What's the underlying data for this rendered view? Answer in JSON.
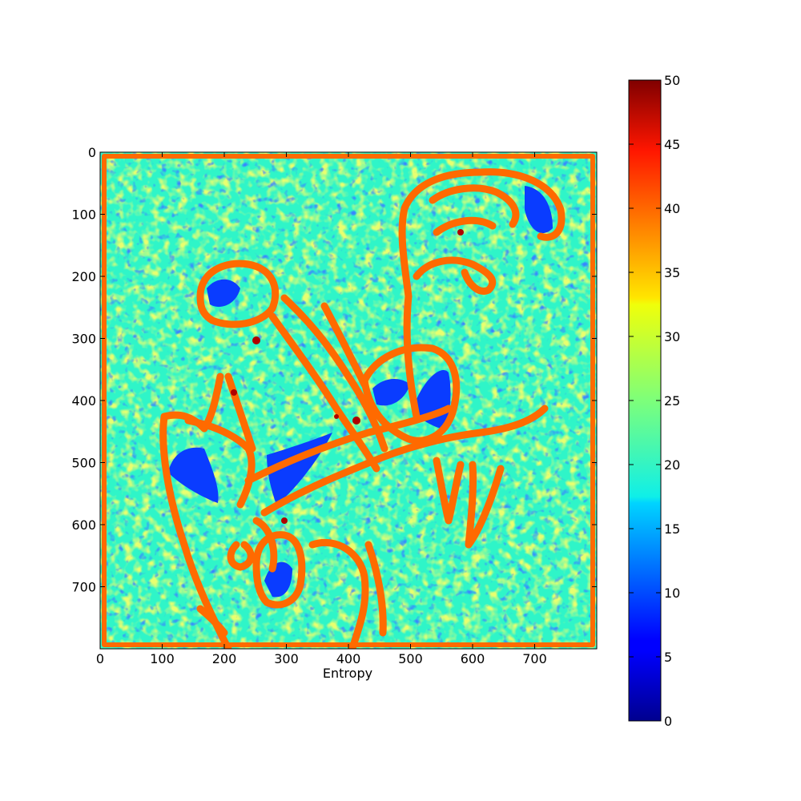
{
  "chart_data": {
    "type": "heatmap",
    "title": "",
    "xlabel": "Entropy",
    "ylabel": "",
    "xlim": [
      0,
      800
    ],
    "ylim": [
      800,
      0
    ],
    "x_ticks": [
      "0",
      "100",
      "200",
      "300",
      "400",
      "500",
      "600",
      "700"
    ],
    "y_ticks": [
      "0",
      "100",
      "200",
      "300",
      "400",
      "500",
      "600",
      "700"
    ],
    "colormap": "jet",
    "colorbar": {
      "range": [
        0,
        50
      ],
      "ticks": [
        "0",
        "5",
        "10",
        "15",
        "20",
        "25",
        "30",
        "35",
        "40",
        "45",
        "50"
      ]
    },
    "colors": {
      "background_level": "#2ff5c8",
      "texture_level": "#cfff2a",
      "edge_level": "#ff6a00",
      "low_level": "#0a3cff",
      "min_level": "#00008f",
      "max_level": "#800000"
    },
    "grid": false
  }
}
